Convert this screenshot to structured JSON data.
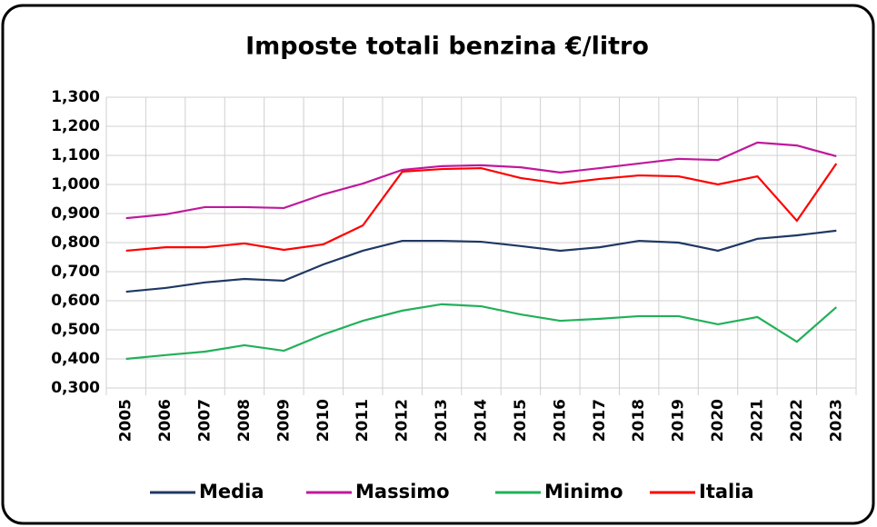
{
  "chart_data": {
    "type": "line",
    "title": "Imposte totali benzina €/litro",
    "categories": [
      "2005",
      "2006",
      "2007",
      "2008",
      "2009",
      "2010",
      "2011",
      "2012",
      "2013",
      "2014",
      "2015",
      "2016",
      "2017",
      "2018",
      "2019",
      "2020",
      "2021",
      "2022",
      "2023"
    ],
    "series": [
      {
        "name": "Media",
        "color": "#1f3864",
        "values": [
          0.631,
          0.644,
          0.663,
          0.675,
          0.669,
          0.725,
          0.772,
          0.806,
          0.806,
          0.803,
          0.788,
          0.772,
          0.784,
          0.806,
          0.8,
          0.772,
          0.813,
          0.825,
          0.841
        ]
      },
      {
        "name": "Massimo",
        "color": "#c0189c",
        "values": [
          0.884,
          0.897,
          0.922,
          0.922,
          0.919,
          0.966,
          1.003,
          1.05,
          1.063,
          1.066,
          1.059,
          1.041,
          1.056,
          1.072,
          1.088,
          1.084,
          1.144,
          1.134,
          1.097
        ]
      },
      {
        "name": "Minimo",
        "color": "#22b05a",
        "values": [
          0.4,
          0.413,
          0.425,
          0.447,
          0.428,
          0.484,
          0.531,
          0.566,
          0.588,
          0.581,
          0.553,
          0.531,
          0.538,
          0.547,
          0.547,
          0.519,
          0.544,
          0.459,
          0.578
        ]
      },
      {
        "name": "Italia",
        "color": "#ff0000",
        "values": [
          0.772,
          0.784,
          0.784,
          0.797,
          0.775,
          0.794,
          0.859,
          1.044,
          1.053,
          1.056,
          1.022,
          1.003,
          1.019,
          1.031,
          1.028,
          1.0,
          1.028,
          0.875,
          1.072
        ]
      }
    ],
    "ylim": [
      0.3,
      1.3
    ],
    "yticks": [
      {
        "value": 0.3,
        "label": "0,300"
      },
      {
        "value": 0.4,
        "label": "0,400"
      },
      {
        "value": 0.5,
        "label": "0,500"
      },
      {
        "value": 0.6,
        "label": "0,600"
      },
      {
        "value": 0.7,
        "label": "0,700"
      },
      {
        "value": 0.8,
        "label": "0,800"
      },
      {
        "value": 0.9,
        "label": "0,900"
      },
      {
        "value": 1.0,
        "label": "1,000"
      },
      {
        "value": 1.1,
        "label": "1,100"
      },
      {
        "value": 1.2,
        "label": "1,200"
      },
      {
        "value": 1.3,
        "label": "1,300"
      }
    ],
    "grid": true,
    "legend": "bottom"
  }
}
